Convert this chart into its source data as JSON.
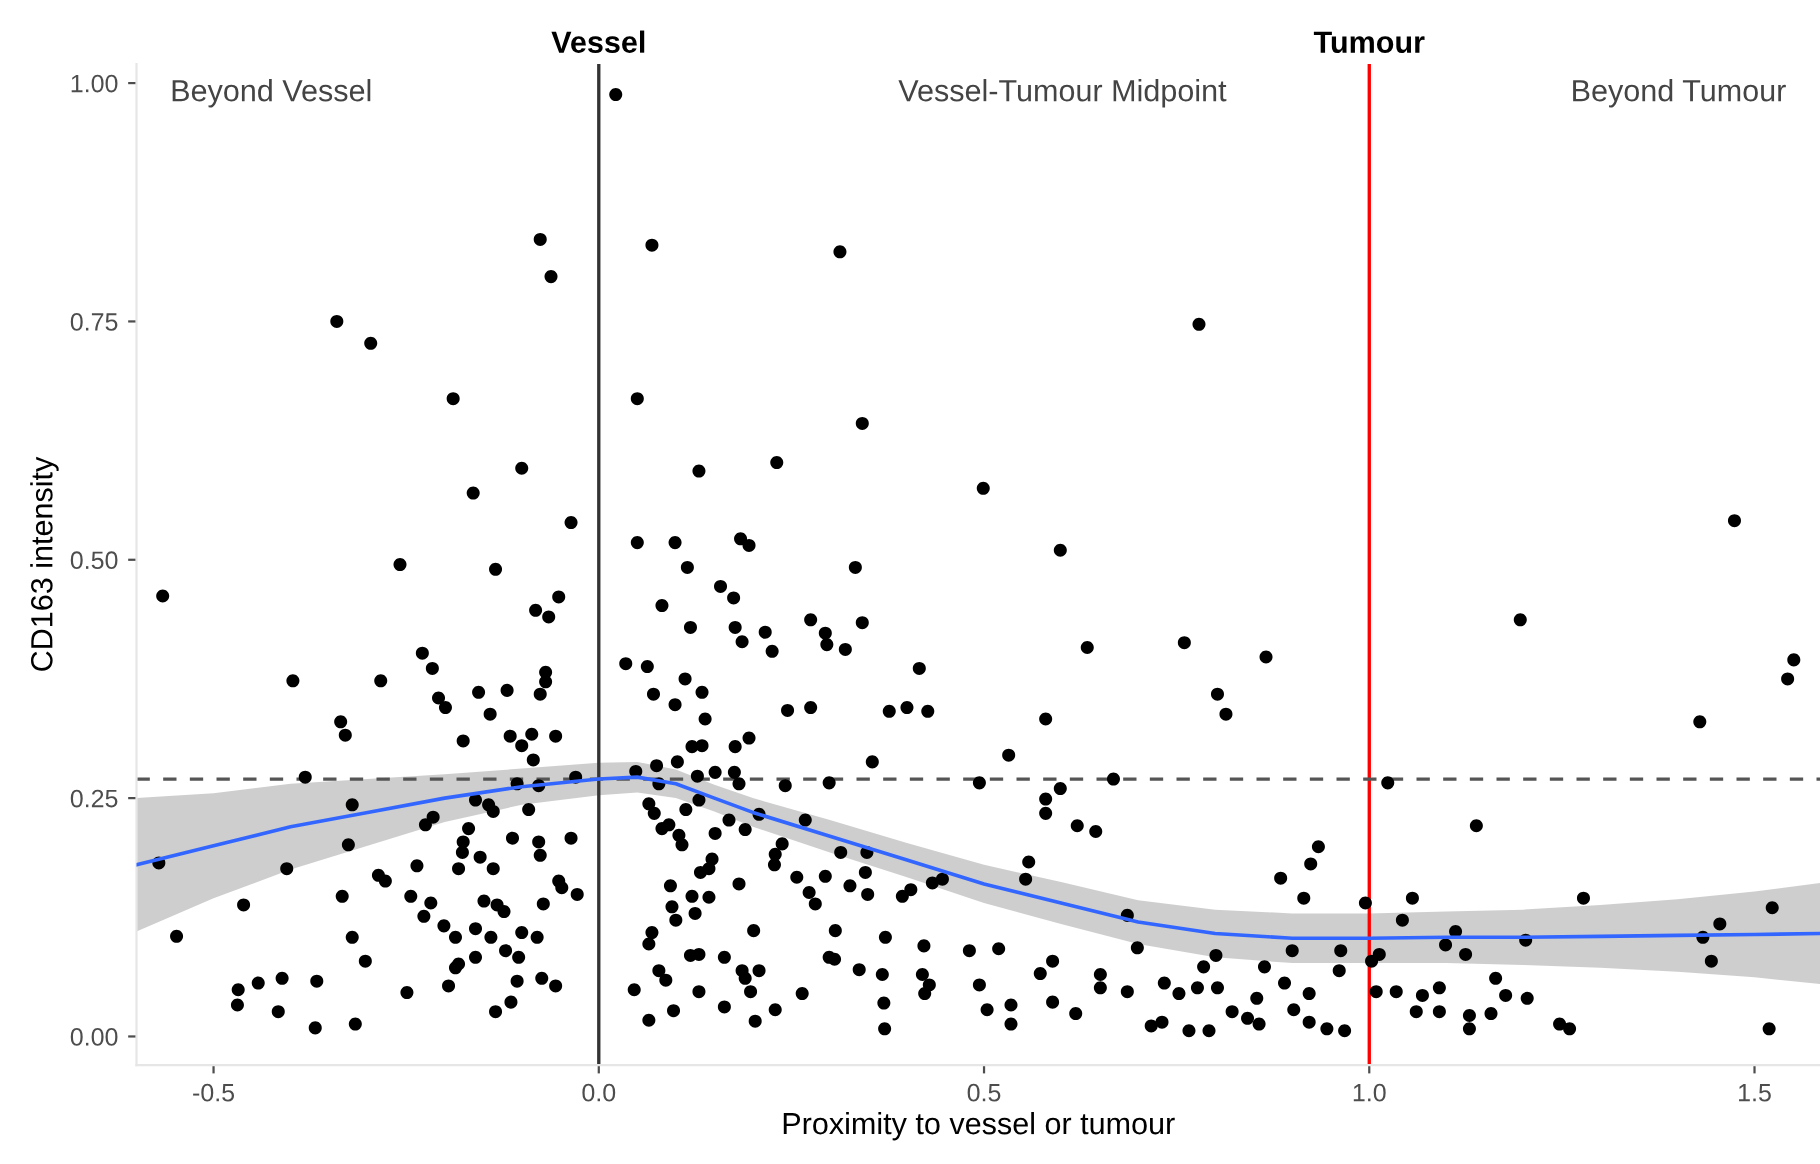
{
  "chart_data": {
    "type": "scatter",
    "xlabel": "Proximity to vessel or tumour",
    "ylabel": "CD163 intensity",
    "xlim": [
      -0.6,
      1.585
    ],
    "ylim": [
      -0.03,
      1.02
    ],
    "xticks": [
      {
        "value": -0.5,
        "label": "-0.5"
      },
      {
        "value": 0,
        "label": "0.0"
      },
      {
        "value": 0.5,
        "label": "0.5"
      },
      {
        "value": 1,
        "label": "1.0"
      },
      {
        "value": 1.5,
        "label": "1.5"
      }
    ],
    "yticks": [
      {
        "value": 0,
        "label": "0.00"
      },
      {
        "value": 0.25,
        "label": "0.25"
      },
      {
        "value": 0.5,
        "label": "0.50"
      },
      {
        "value": 0.75,
        "label": "0.75"
      },
      {
        "value": 1,
        "label": "1.00"
      }
    ],
    "grid": false,
    "legend": false,
    "annotations": [
      "Beyond Vessel",
      "Vessel-Tumour Midpoint",
      "Beyond Tumour"
    ],
    "ref_lines": [
      {
        "axis": "x",
        "value": 0,
        "label": "Vessel",
        "color": "#333333"
      },
      {
        "axis": "x",
        "value": 1,
        "label": "Tumour",
        "color": "#ff0000"
      },
      {
        "axis": "y",
        "value": 0.27,
        "color": "#555555",
        "line_style": "dashed"
      }
    ],
    "series": [
      {
        "color": "#000000",
        "marker": "circle",
        "x": [
          -0.566,
          -0.548,
          -0.571,
          -0.076,
          -0.062,
          -0.34,
          -0.296,
          -0.189,
          -0.1,
          -0.163,
          -0.036,
          -0.258,
          -0.134,
          -0.052,
          -0.082,
          -0.065,
          -0.229,
          -0.216,
          -0.397,
          -0.283,
          -0.069,
          -0.069,
          -0.208,
          -0.199,
          -0.156,
          -0.119,
          -0.076,
          -0.141,
          -0.335,
          -0.329,
          -0.176,
          -0.115,
          -0.1,
          -0.087,
          -0.056,
          -0.085,
          -0.381,
          -0.106,
          -0.078,
          -0.03,
          -0.32,
          -0.16,
          -0.143,
          -0.137,
          -0.091,
          -0.215,
          -0.225,
          -0.325,
          -0.169,
          -0.176,
          -0.112,
          -0.078,
          -0.036,
          -0.177,
          -0.076,
          -0.154,
          -0.405,
          -0.236,
          -0.182,
          -0.137,
          -0.286,
          -0.277,
          -0.052,
          -0.048,
          -0.028,
          -0.333,
          -0.244,
          -0.218,
          -0.149,
          -0.132,
          -0.123,
          -0.072,
          -0.461,
          -0.227,
          -0.201,
          -0.16,
          -0.186,
          -0.14,
          -0.1,
          -0.08,
          -0.32,
          -0.121,
          -0.104,
          -0.303,
          -0.16,
          -0.182,
          -0.186,
          -0.074,
          -0.106,
          -0.056,
          -0.442,
          -0.411,
          -0.366,
          -0.468,
          -0.469,
          -0.416,
          -0.368,
          -0.316,
          -0.249,
          -0.195,
          -0.134,
          -0.114,
          0.022,
          0.069,
          0.313,
          0.05,
          0.342,
          0.13,
          0.231,
          0.499,
          0.05,
          0.099,
          0.184,
          0.195,
          0.115,
          0.333,
          0.158,
          0.175,
          0.082,
          0.119,
          0.177,
          0.186,
          0.216,
          0.225,
          0.275,
          0.294,
          0.296,
          0.32,
          0.342,
          0.035,
          0.063,
          0.416,
          0.071,
          0.099,
          0.112,
          0.134,
          0.138,
          0.245,
          0.275,
          0.377,
          0.4,
          0.427,
          0.121,
          0.134,
          0.177,
          0.195,
          0.355,
          0.532,
          0.048,
          0.075,
          0.102,
          0.151,
          0.176,
          0.078,
          0.128,
          0.299,
          0.494,
          0.182,
          0.242,
          0.065,
          0.072,
          0.13,
          0.113,
          0.082,
          0.091,
          0.104,
          0.108,
          0.151,
          0.169,
          0.19,
          0.208,
          0.268,
          0.238,
          0.229,
          0.314,
          0.348,
          0.147,
          0.132,
          0.143,
          0.228,
          0.257,
          0.294,
          0.346,
          0.182,
          0.093,
          0.121,
          0.143,
          0.273,
          0.281,
          0.326,
          0.349,
          0.394,
          0.405,
          0.433,
          0.446,
          0.095,
          0.1,
          0.125,
          0.069,
          0.065,
          0.201,
          0.307,
          0.372,
          0.422,
          0.481,
          0.519,
          0.119,
          0.13,
          0.163,
          0.299,
          0.306,
          0.078,
          0.087,
          0.186,
          0.208,
          0.19,
          0.338,
          0.368,
          0.42,
          0.429,
          0.423,
          0.494,
          0.046,
          0.097,
          0.065,
          0.13,
          0.163,
          0.197,
          0.203,
          0.229,
          0.264,
          0.37,
          0.371,
          0.504,
          0.535,
          0.535,
          0.779,
          0.599,
          1.474,
          0.634,
          0.76,
          0.866,
          1.196,
          1.551,
          1.543,
          1.429,
          0.803,
          0.814,
          0.58,
          0.668,
          1.024,
          0.599,
          0.58,
          0.58,
          0.621,
          0.645,
          1.139,
          0.934,
          0.924,
          0.885,
          0.915,
          0.995,
          1.056,
          1.278,
          1.523,
          0.558,
          0.554,
          0.686,
          1.043,
          1.455,
          1.112,
          1.433,
          1.203,
          1.099,
          0.699,
          0.9,
          0.963,
          1.125,
          0.801,
          1.013,
          1.003,
          1.444,
          0.589,
          0.785,
          0.864,
          0.961,
          0.573,
          0.651,
          0.89,
          1.164,
          0.651,
          0.686,
          0.734,
          0.753,
          0.777,
          0.803,
          0.854,
          0.922,
          1.009,
          1.035,
          1.069,
          1.091,
          1.177,
          1.205,
          0.589,
          0.619,
          0.717,
          0.731,
          0.766,
          0.792,
          0.822,
          0.842,
          0.857,
          0.902,
          0.922,
          0.945,
          0.968,
          1.061,
          1.091,
          1.13,
          1.13,
          1.158,
          1.247,
          1.26,
          1.519
        ],
        "values": [
          0.462,
          0.105,
          0.182,
          0.836,
          0.797,
          0.75,
          0.727,
          0.669,
          0.596,
          0.57,
          0.539,
          0.495,
          0.49,
          0.461,
          0.447,
          0.44,
          0.402,
          0.386,
          0.373,
          0.373,
          0.382,
          0.372,
          0.355,
          0.345,
          0.361,
          0.363,
          0.359,
          0.338,
          0.33,
          0.316,
          0.31,
          0.315,
          0.305,
          0.317,
          0.315,
          0.29,
          0.272,
          0.265,
          0.263,
          0.272,
          0.243,
          0.248,
          0.243,
          0.236,
          0.238,
          0.23,
          0.222,
          0.201,
          0.218,
          0.204,
          0.208,
          0.204,
          0.208,
          0.193,
          0.19,
          0.188,
          0.176,
          0.179,
          0.176,
          0.176,
          0.169,
          0.163,
          0.163,
          0.156,
          0.149,
          0.147,
          0.147,
          0.14,
          0.142,
          0.138,
          0.131,
          0.139,
          0.138,
          0.126,
          0.116,
          0.113,
          0.104,
          0.104,
          0.109,
          0.104,
          0.104,
          0.09,
          0.083,
          0.079,
          0.083,
          0.076,
          0.072,
          0.061,
          0.058,
          0.053,
          0.056,
          0.061,
          0.058,
          0.049,
          0.033,
          0.026,
          0.009,
          0.013,
          0.046,
          0.053,
          0.026,
          0.036,
          0.988,
          0.83,
          0.823,
          0.669,
          0.643,
          0.593,
          0.602,
          0.575,
          0.518,
          0.518,
          0.522,
          0.515,
          0.492,
          0.492,
          0.472,
          0.46,
          0.452,
          0.429,
          0.429,
          0.414,
          0.424,
          0.404,
          0.437,
          0.423,
          0.411,
          0.406,
          0.434,
          0.391,
          0.388,
          0.386,
          0.359,
          0.348,
          0.375,
          0.361,
          0.333,
          0.342,
          0.345,
          0.341,
          0.345,
          0.341,
          0.304,
          0.305,
          0.304,
          0.313,
          0.288,
          0.295,
          0.278,
          0.284,
          0.288,
          0.277,
          0.277,
          0.265,
          0.273,
          0.266,
          0.266,
          0.265,
          0.263,
          0.244,
          0.234,
          0.248,
          0.238,
          0.218,
          0.222,
          0.211,
          0.201,
          0.213,
          0.227,
          0.217,
          0.233,
          0.227,
          0.202,
          0.191,
          0.193,
          0.193,
          0.186,
          0.172,
          0.176,
          0.18,
          0.167,
          0.168,
          0.172,
          0.16,
          0.158,
          0.147,
          0.146,
          0.151,
          0.139,
          0.158,
          0.149,
          0.147,
          0.154,
          0.161,
          0.165,
          0.136,
          0.122,
          0.129,
          0.109,
          0.097,
          0.111,
          0.111,
          0.104,
          0.095,
          0.09,
          0.092,
          0.085,
          0.086,
          0.083,
          0.083,
          0.081,
          0.069,
          0.059,
          0.069,
          0.069,
          0.061,
          0.07,
          0.065,
          0.065,
          0.054,
          0.045,
          0.054,
          0.049,
          0.027,
          0.017,
          0.047,
          0.031,
          0.047,
          0.016,
          0.028,
          0.045,
          0.035,
          0.008,
          0.028,
          0.013,
          0.033,
          0.747,
          0.51,
          0.541,
          0.408,
          0.413,
          0.398,
          0.437,
          0.395,
          0.375,
          0.33,
          0.359,
          0.338,
          0.333,
          0.27,
          0.266,
          0.26,
          0.249,
          0.234,
          0.221,
          0.215,
          0.221,
          0.199,
          0.181,
          0.166,
          0.145,
          0.14,
          0.145,
          0.145,
          0.135,
          0.183,
          0.165,
          0.127,
          0.122,
          0.118,
          0.11,
          0.104,
          0.101,
          0.096,
          0.093,
          0.09,
          0.09,
          0.086,
          0.085,
          0.086,
          0.079,
          0.079,
          0.079,
          0.073,
          0.073,
          0.069,
          0.066,
          0.065,
          0.056,
          0.061,
          0.051,
          0.047,
          0.056,
          0.045,
          0.051,
          0.051,
          0.04,
          0.045,
          0.047,
          0.047,
          0.043,
          0.051,
          0.043,
          0.04,
          0.036,
          0.024,
          0.011,
          0.015,
          0.006,
          0.006,
          0.026,
          0.019,
          0.013,
          0.028,
          0.015,
          0.008,
          0.006,
          0.026,
          0.026,
          0.022,
          0.008,
          0.024,
          0.013,
          0.008,
          0.008
        ]
      },
      {
        "type": "line",
        "color": "#3366ff",
        "x": [
          -0.6,
          -0.5,
          -0.4,
          -0.3,
          -0.2,
          -0.1,
          0,
          0.05,
          0.1,
          0.15,
          0.2,
          0.3,
          0.4,
          0.5,
          0.6,
          0.7,
          0.8,
          0.9,
          1.0,
          1.1,
          1.2,
          1.3,
          1.4,
          1.5,
          1.585
        ],
        "values": [
          0.18,
          0.2,
          0.22,
          0.235,
          0.25,
          0.262,
          0.27,
          0.272,
          0.265,
          0.25,
          0.235,
          0.21,
          0.185,
          0.16,
          0.14,
          0.12,
          0.108,
          0.103,
          0.103,
          0.104,
          0.104,
          0.105,
          0.106,
          0.107,
          0.108
        ],
        "lower": [
          0.11,
          0.145,
          0.175,
          0.2,
          0.225,
          0.243,
          0.253,
          0.256,
          0.25,
          0.236,
          0.22,
          0.193,
          0.167,
          0.14,
          0.118,
          0.097,
          0.083,
          0.077,
          0.077,
          0.077,
          0.075,
          0.072,
          0.068,
          0.062,
          0.055
        ],
        "upper": [
          0.25,
          0.255,
          0.265,
          0.27,
          0.275,
          0.281,
          0.287,
          0.288,
          0.28,
          0.264,
          0.25,
          0.227,
          0.203,
          0.18,
          0.162,
          0.143,
          0.133,
          0.129,
          0.129,
          0.131,
          0.133,
          0.138,
          0.144,
          0.152,
          0.161
        ]
      }
    ]
  }
}
